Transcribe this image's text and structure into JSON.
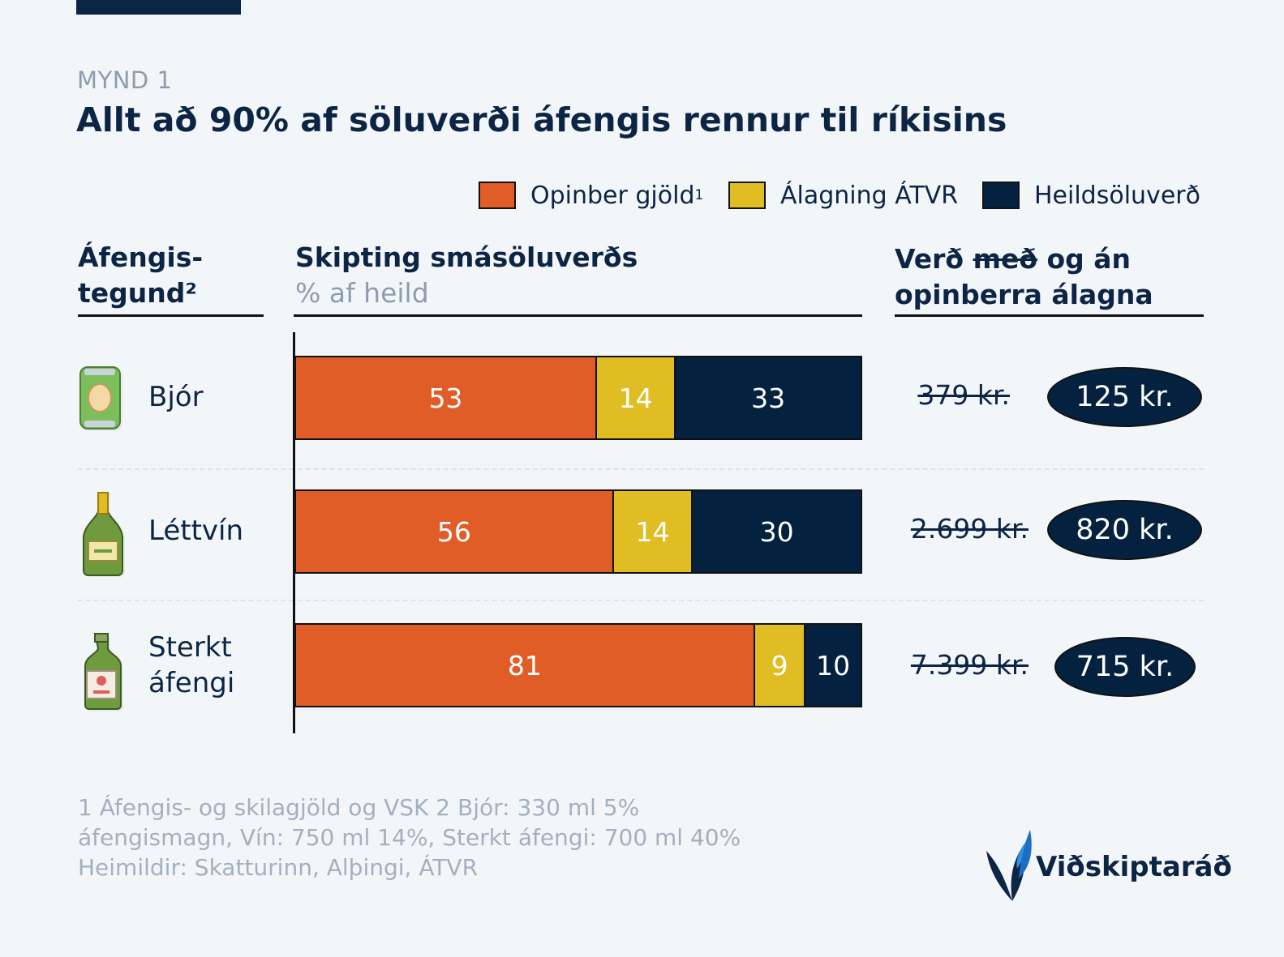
{
  "figure_label": "MYND 1",
  "title": "Allt að 90% af söluverði áfengis rennur til ríkisins",
  "legend": [
    {
      "label": "Opinber gjöld",
      "sup": "1",
      "color": "#e05d28"
    },
    {
      "label": "Álagning ÁTVR",
      "sup": "",
      "color": "#e0bd22"
    },
    {
      "label": "Heildsöluverð",
      "sup": "",
      "color": "#04223f"
    }
  ],
  "headers": {
    "type_line1": "Áfengis-",
    "type_line2": "tegund²",
    "split_title": "Skipting smásöluverðs",
    "split_sub": "% af heild",
    "price_part1": "Verð ",
    "price_strike": "með",
    "price_part2": " og án",
    "price_line2": "opinberra álagna"
  },
  "chart_data": {
    "type": "bar",
    "stacked": true,
    "orientation": "horizontal",
    "unit": "% af heild",
    "categories": [
      "Bjór",
      "Léttvín",
      "Sterkt áfengi"
    ],
    "series": [
      {
        "name": "Opinber gjöld",
        "values": [
          53,
          56,
          81
        ]
      },
      {
        "name": "Álagning ÁTVR",
        "values": [
          14,
          14,
          9
        ]
      },
      {
        "name": "Heildsöluverð",
        "values": [
          33,
          30,
          10
        ]
      }
    ],
    "xlim": [
      0,
      100
    ]
  },
  "rows": [
    {
      "name_line1": "Bjór",
      "name_line2": "",
      "price_with": "379 kr.",
      "price_without": "125 kr.",
      "icon": "beer-can-icon"
    },
    {
      "name_line1": "Léttvín",
      "name_line2": "",
      "price_with": "2.699 kr.",
      "price_without": "820 kr.",
      "icon": "wine-bottle-icon"
    },
    {
      "name_line1": "Sterkt",
      "name_line2": "áfengi",
      "price_with": "7.399 kr.",
      "price_without": "715 kr.",
      "icon": "liquor-bottle-icon"
    }
  ],
  "footnotes": [
    "1 Áfengis- og skilagjöld og VSK 2 Bjór: 330 ml 5%",
    "áfengismagn, Vín: 750 ml 14%, Sterkt áfengi: 700 ml 40%",
    "Heimildir: Skatturinn, Alþingi, ÁTVR"
  ],
  "brand": "Viðskiptaráð"
}
